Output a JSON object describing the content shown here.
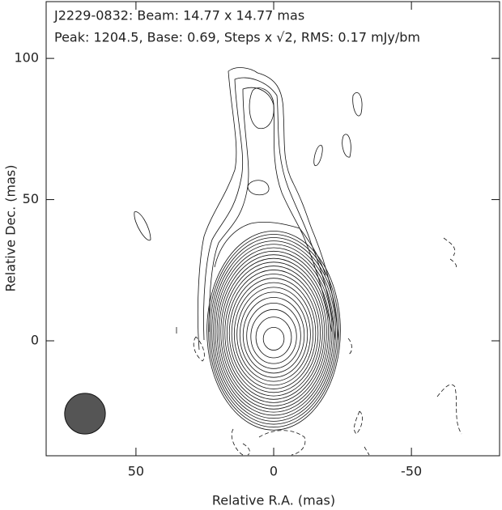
{
  "chart_data": {
    "type": "contour",
    "title": "J2229-0832: Beam: 14.77 x 14.77 mas",
    "subtitle": "Peak: 1204.5, Base: 0.69, Steps x √2, RMS: 0.17 mJy/bm",
    "x_label": "Relative R.A. (mas)",
    "y_label": "Relative Dec. (mas)",
    "xlim": [
      82.6,
      -82
    ],
    "ylim": [
      -40.7,
      120.1
    ],
    "xticks": [
      50,
      0,
      -50
    ],
    "yticks": [
      0,
      50,
      100
    ],
    "beam": {
      "x": 68.5,
      "y": -25.8,
      "diameter": 14.77,
      "color": "#555555"
    }
  }
}
